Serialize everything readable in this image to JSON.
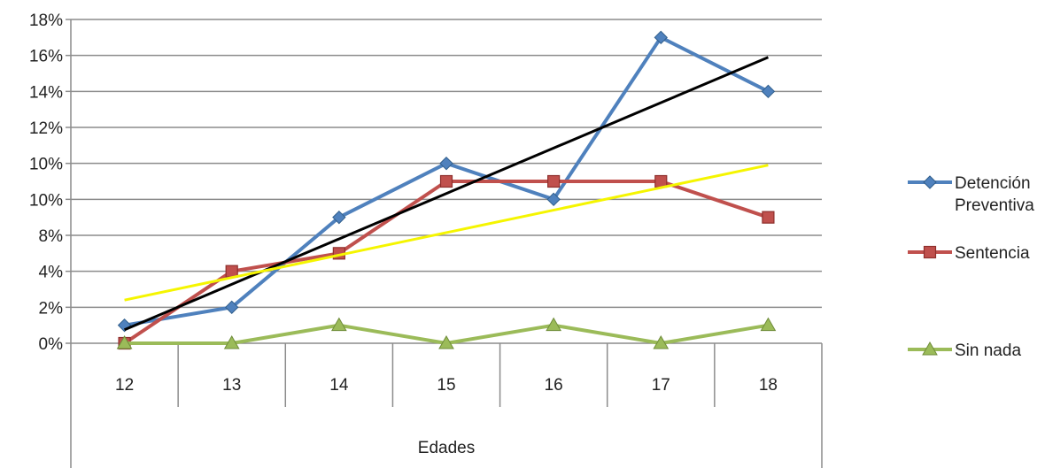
{
  "chart_data": {
    "type": "line",
    "categories": [
      "12",
      "13",
      "14",
      "15",
      "16",
      "17",
      "18"
    ],
    "y_tick_labels": [
      "0%",
      "2%",
      "4%",
      "8%",
      "10%",
      "10%",
      "12%",
      "14%",
      "16%",
      "18%"
    ],
    "ylim": [
      0,
      18
    ],
    "xlabel": "Edades",
    "ylabel": "",
    "title": "",
    "grid": true,
    "legend_position": "right",
    "series": [
      {
        "key": "detencion",
        "name_lines": [
          "Detención",
          "Preventiva"
        ],
        "values": [
          1,
          2,
          8,
          10,
          10,
          17,
          14
        ],
        "y_positions": [
          1,
          2,
          7,
          10,
          8,
          17,
          14
        ],
        "color": "#4f81bd",
        "marker": "diamond"
      },
      {
        "key": "sentencia",
        "name_lines": [
          "Sentencia"
        ],
        "values": [
          0,
          4,
          5,
          11,
          11,
          11,
          9
        ],
        "y_positions": [
          0,
          4,
          5,
          9,
          9,
          9,
          7
        ],
        "color": "#c0504d",
        "marker": "square"
      },
      {
        "key": "sinnada",
        "name_lines": [
          "Sin nada"
        ],
        "values": [
          0,
          0,
          1,
          0,
          1,
          0,
          1
        ],
        "y_positions": [
          0,
          0,
          1,
          0,
          1,
          0,
          1
        ],
        "color": "#9bbb59",
        "marker": "triangle"
      }
    ],
    "trendlines": [
      {
        "key": "trend-detencion",
        "color": "#000000",
        "y_start": 0.75,
        "y_end": 15.9
      },
      {
        "key": "trend-sentencia",
        "color": "#f5f500",
        "y_start": 2.4,
        "y_end": 9.9
      }
    ]
  }
}
